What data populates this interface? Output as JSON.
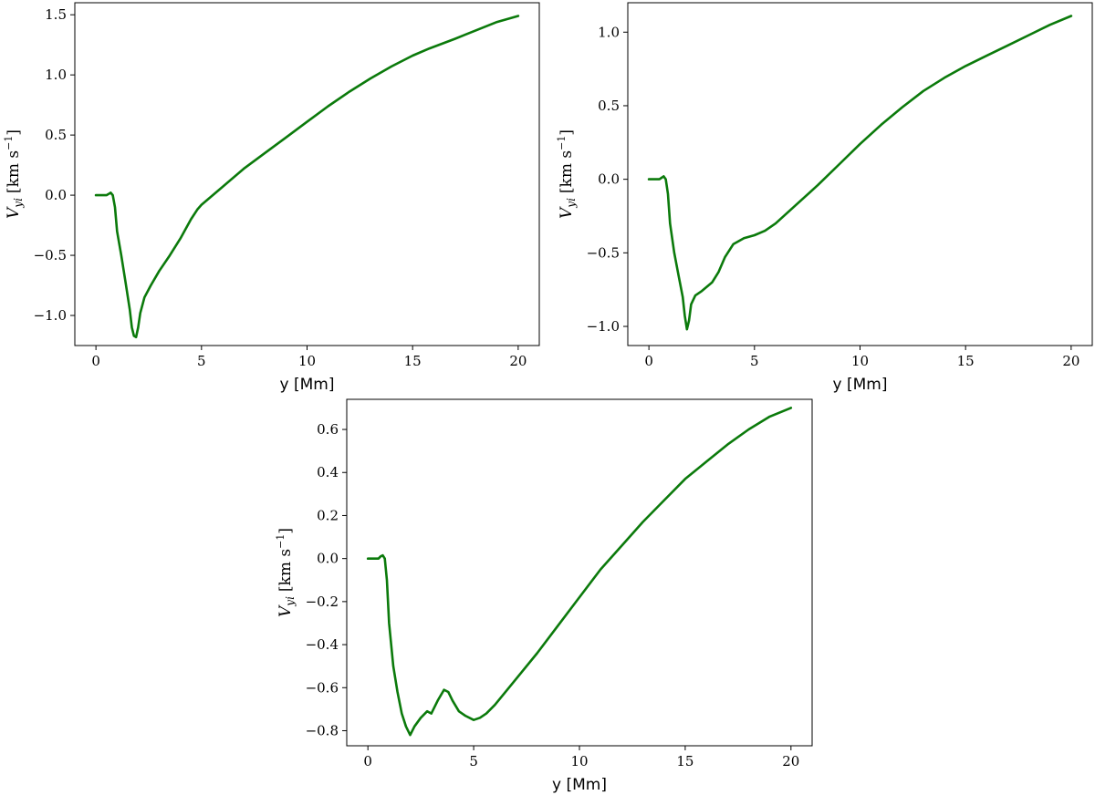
{
  "colors": {
    "line": "#0b7a0b",
    "axes": "#000000",
    "background": "#ffffff"
  },
  "chart_data": [
    {
      "type": "line",
      "title": "",
      "xlabel": "y [Mm]",
      "ylabel": {
        "main": "V",
        "sub": "yi",
        "unit": "[km s",
        "exp": "−1",
        "close": "]"
      },
      "xlim": [
        -1,
        21
      ],
      "ylim": [
        -1.25,
        1.6
      ],
      "xticks": [
        0,
        5,
        10,
        15,
        20
      ],
      "xtick_labels": [
        "0",
        "5",
        "10",
        "15",
        "20"
      ],
      "yticks": [
        -1.0,
        -0.5,
        0.0,
        0.5,
        1.0,
        1.5
      ],
      "ytick_labels": [
        "−1.0",
        "−0.5",
        "0.0",
        "0.5",
        "1.0",
        "1.5"
      ],
      "grid": false,
      "series": [
        {
          "x": [
            0,
            0.5,
            0.6,
            0.7,
            0.8,
            0.9,
            1.0,
            1.2,
            1.4,
            1.6,
            1.7,
            1.8,
            1.9,
            2.0,
            2.1,
            2.3,
            2.6,
            3.0,
            3.5,
            4.0,
            4.5,
            4.8,
            5.0,
            6.0,
            7.0,
            8.0,
            9.0,
            10.0,
            11.0,
            12.0,
            13.0,
            14.0,
            15.0,
            15.8,
            17.0,
            18.0,
            19.0,
            20.0
          ],
          "y": [
            0.0,
            0.0,
            0.01,
            0.02,
            0.0,
            -0.1,
            -0.3,
            -0.5,
            -0.72,
            -0.95,
            -1.1,
            -1.17,
            -1.18,
            -1.1,
            -0.98,
            -0.85,
            -0.75,
            -0.63,
            -0.5,
            -0.36,
            -0.2,
            -0.12,
            -0.08,
            0.07,
            0.22,
            0.35,
            0.48,
            0.61,
            0.74,
            0.86,
            0.97,
            1.07,
            1.16,
            1.22,
            1.3,
            1.37,
            1.44,
            1.49
          ]
        }
      ]
    },
    {
      "type": "line",
      "title": "",
      "xlabel": "y [Mm]",
      "ylabel": {
        "main": "V",
        "sub": "yi",
        "unit": "[km s",
        "exp": "−1",
        "close": "]"
      },
      "xlim": [
        -1,
        21
      ],
      "ylim": [
        -1.13,
        1.2
      ],
      "xticks": [
        0,
        5,
        10,
        15,
        20
      ],
      "xtick_labels": [
        "0",
        "5",
        "10",
        "15",
        "20"
      ],
      "yticks": [
        -1.0,
        -0.5,
        0.0,
        0.5,
        1.0
      ],
      "ytick_labels": [
        "−1.0",
        "−0.5",
        "0.0",
        "0.5",
        "1.0"
      ],
      "grid": false,
      "series": [
        {
          "x": [
            0,
            0.5,
            0.6,
            0.7,
            0.8,
            0.9,
            1.0,
            1.2,
            1.4,
            1.6,
            1.7,
            1.8,
            1.9,
            2.0,
            2.2,
            2.5,
            3.0,
            3.3,
            3.6,
            4.0,
            4.5,
            5.0,
            5.5,
            6.0,
            7.0,
            8.0,
            9.0,
            10.0,
            11.0,
            12.0,
            13.0,
            14.0,
            15.0,
            16.0,
            17.0,
            18.0,
            19.0,
            20.0
          ],
          "y": [
            0.0,
            0.0,
            0.01,
            0.02,
            0.0,
            -0.1,
            -0.3,
            -0.5,
            -0.65,
            -0.8,
            -0.93,
            -1.02,
            -0.96,
            -0.85,
            -0.79,
            -0.76,
            -0.7,
            -0.63,
            -0.53,
            -0.44,
            -0.4,
            -0.38,
            -0.35,
            -0.3,
            -0.17,
            -0.04,
            0.1,
            0.24,
            0.37,
            0.49,
            0.6,
            0.69,
            0.77,
            0.84,
            0.91,
            0.98,
            1.05,
            1.11
          ]
        }
      ]
    },
    {
      "type": "line",
      "title": "",
      "xlabel": "y [Mm]",
      "ylabel": {
        "main": "V",
        "sub": "yi",
        "unit": "[km s",
        "exp": "−1",
        "close": "]"
      },
      "xlim": [
        -1,
        21
      ],
      "ylim": [
        -0.87,
        0.74
      ],
      "xticks": [
        0,
        5,
        10,
        15,
        20
      ],
      "xtick_labels": [
        "0",
        "5",
        "10",
        "15",
        "20"
      ],
      "yticks": [
        -0.8,
        -0.6,
        -0.4,
        -0.2,
        0.0,
        0.2,
        0.4,
        0.6
      ],
      "ytick_labels": [
        "−0.8",
        "−0.6",
        "−0.4",
        "−0.2",
        "0.0",
        "0.2",
        "0.4",
        "0.6"
      ],
      "grid": false,
      "series": [
        {
          "x": [
            0,
            0.5,
            0.6,
            0.7,
            0.8,
            0.9,
            1.0,
            1.2,
            1.4,
            1.6,
            1.8,
            2.0,
            2.2,
            2.5,
            2.8,
            3.0,
            3.3,
            3.6,
            3.8,
            4.0,
            4.3,
            4.6,
            5.0,
            5.3,
            5.6,
            6.0,
            7.0,
            8.0,
            9.0,
            10.0,
            11.0,
            12.0,
            13.0,
            14.0,
            15.0,
            16.0,
            17.0,
            18.0,
            19.0,
            20.0
          ],
          "y": [
            0.0,
            0.0,
            0.01,
            0.015,
            0.0,
            -0.1,
            -0.3,
            -0.5,
            -0.62,
            -0.72,
            -0.78,
            -0.82,
            -0.78,
            -0.74,
            -0.71,
            -0.72,
            -0.66,
            -0.61,
            -0.62,
            -0.66,
            -0.71,
            -0.73,
            -0.75,
            -0.74,
            -0.72,
            -0.68,
            -0.56,
            -0.44,
            -0.31,
            -0.18,
            -0.05,
            0.06,
            0.17,
            0.27,
            0.37,
            0.45,
            0.53,
            0.6,
            0.66,
            0.7
          ]
        }
      ]
    }
  ]
}
